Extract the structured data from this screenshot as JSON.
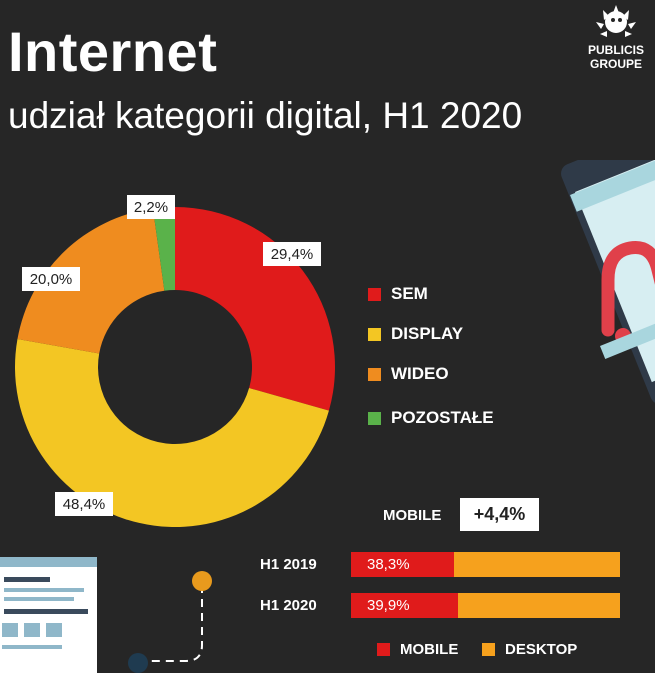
{
  "header": {
    "title": "Internet",
    "subtitle": "udział kategorii digital, H1 2020",
    "logo_line1": "PUBLICIS",
    "logo_line2": "GROUPE"
  },
  "colors": {
    "sem": "#e01b1b",
    "display": "#f3c623",
    "wideo": "#ef8c1f",
    "pozostale": "#5ab24a",
    "mobile": "#e01b1b",
    "desktop": "#f6a11d",
    "background": "#262626"
  },
  "chart_data": [
    {
      "type": "pie",
      "variant": "donut",
      "categories": [
        "SEM",
        "DISPLAY",
        "WIDEO",
        "POZOSTAŁE"
      ],
      "values": [
        29.4,
        48.4,
        20.0,
        2.2
      ],
      "value_labels": [
        "29,4%",
        "48,4%",
        "20,0%",
        "2,2%"
      ],
      "legend": [
        "SEM",
        "DISPLAY",
        "WIDEO",
        "POZOSTAŁE"
      ],
      "legend_position": "right"
    },
    {
      "type": "bar",
      "orientation": "horizontal",
      "stacked": true,
      "categories": [
        "H1 2019",
        "H1 2020"
      ],
      "series": [
        {
          "name": "MOBILE",
          "values": [
            38.3,
            39.9
          ],
          "labels": [
            "38,3%",
            "39,9%"
          ]
        },
        {
          "name": "DESKTOP",
          "values": [
            61.7,
            60.1
          ]
        }
      ],
      "annotation": {
        "label": "MOBILE",
        "value": "+4,4%"
      },
      "legend_position": "bottom"
    }
  ]
}
